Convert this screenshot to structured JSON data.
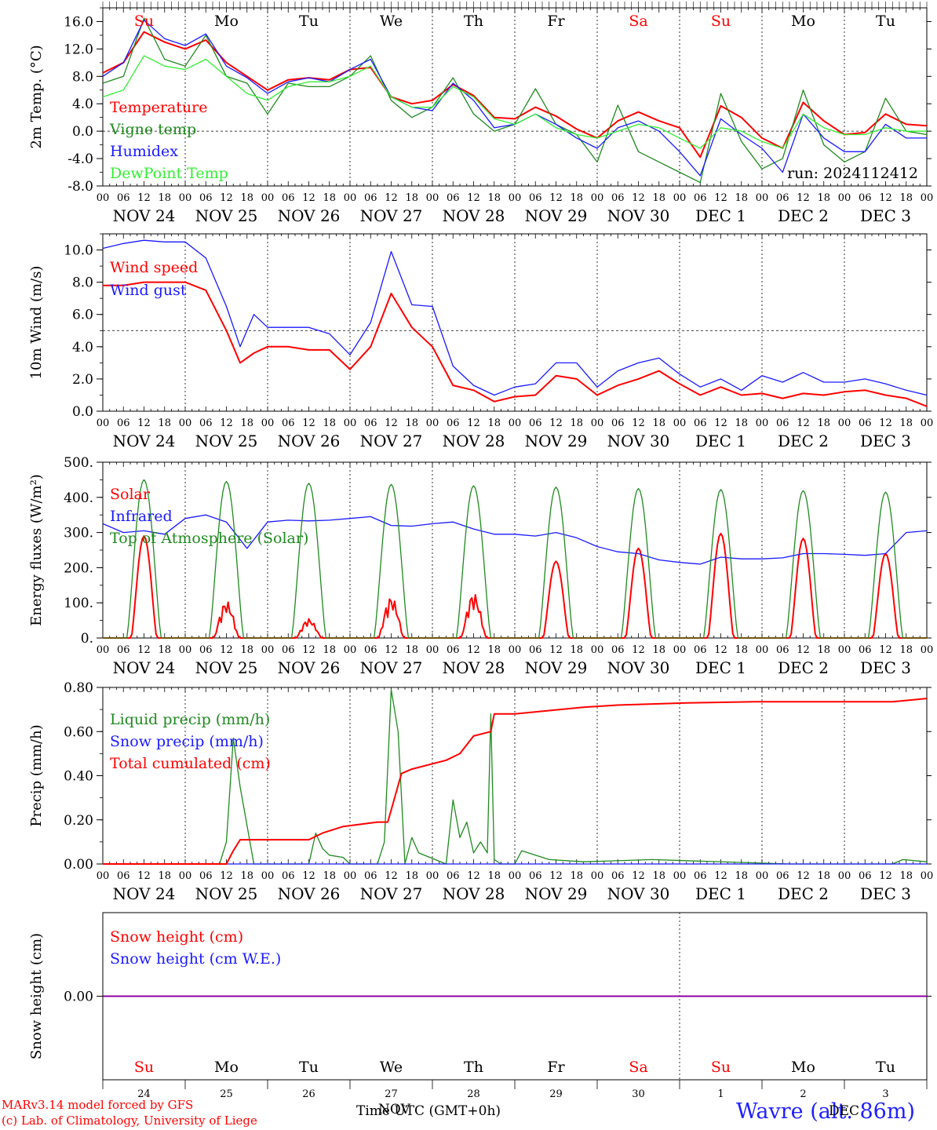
{
  "colors": {
    "red": "#ff0000",
    "darkgreen": "#1f8a1f",
    "blue": "#1a1aff",
    "lightgreen": "#33ee33",
    "purple": "#8000c0",
    "weekend": "#ff0000",
    "weekday": "#000000"
  },
  "day_labels": [
    {
      "label": "Su",
      "weekend": true
    },
    {
      "label": "Mo",
      "weekend": false
    },
    {
      "label": "Tu",
      "weekend": false
    },
    {
      "label": "We",
      "weekend": false
    },
    {
      "label": "Th",
      "weekend": false
    },
    {
      "label": "Fr",
      "weekend": false
    },
    {
      "label": "Sa",
      "weekend": true
    },
    {
      "label": "Su",
      "weekend": true
    },
    {
      "label": "Mo",
      "weekend": false
    },
    {
      "label": "Tu",
      "weekend": false
    }
  ],
  "date_labels": [
    "NOV 24",
    "NOV 25",
    "NOV 26",
    "NOV 27",
    "NOV 28",
    "NOV 29",
    "NOV 30",
    "DEC  1",
    "DEC  2",
    "DEC  3"
  ],
  "day_numbers": [
    "24",
    "25",
    "26",
    "27",
    "28",
    "29",
    "30",
    "1",
    "2",
    "3"
  ],
  "hour_ticks": [
    "00",
    "06",
    "12",
    "18"
  ],
  "final_hour_tick": "00",
  "footer": {
    "credit_line1": "MARv3.14 model forced by GFS",
    "credit_line2": "(c) Lab. of Climatology, University of Liege",
    "time_title": "Time UTC (GMT+0h)",
    "overlap_text": "NOV",
    "station": "Wavre (alt. 86m)",
    "station_overlap": "DEC"
  },
  "chart_data": [
    {
      "id": "temperature",
      "type": "line",
      "ylabel": "2m Temp. (°C)",
      "ylim": [
        -8,
        18
      ],
      "yticks": [
        "16.0",
        "12.0",
        "8.0",
        "4.0",
        "0.0",
        "-4.0",
        "-8.0"
      ],
      "ytick_values": [
        16,
        12,
        8,
        4,
        0,
        -4,
        -8
      ],
      "reference_line": 0,
      "annotation": "run: 2024112412",
      "x_unit": "hours since NOV 24 00 UTC",
      "series": [
        {
          "name": "Temperature",
          "color": "red",
          "x": [
            0,
            6,
            12,
            18,
            24,
            30,
            36,
            42,
            48,
            54,
            60,
            66,
            72,
            78,
            84,
            90,
            96,
            102,
            108,
            114,
            120,
            126,
            132,
            138,
            144,
            150,
            156,
            162,
            168,
            174,
            180,
            186,
            192,
            198,
            204,
            210,
            216,
            222,
            228,
            234,
            240
          ],
          "values": [
            8.5,
            10,
            14.5,
            13,
            12,
            13.3,
            10,
            8,
            6,
            7.5,
            7.8,
            7.5,
            9,
            9.3,
            5,
            4,
            4.5,
            6.8,
            5.2,
            2,
            1.8,
            3.5,
            2.2,
            0.3,
            -1,
            1.5,
            2.8,
            1.5,
            0.5,
            -3.8,
            3.7,
            2,
            -1,
            -2.5,
            4.2,
            1.5,
            -0.5,
            -0.2,
            2.5,
            1,
            0.8
          ]
        },
        {
          "name": "Vigne temp",
          "color": "darkgreen",
          "x": [
            0,
            6,
            12,
            18,
            24,
            30,
            36,
            42,
            48,
            54,
            60,
            66,
            72,
            78,
            84,
            90,
            96,
            102,
            108,
            114,
            120,
            126,
            132,
            138,
            144,
            150,
            156,
            162,
            168,
            174,
            180,
            186,
            192,
            198,
            204,
            210,
            216,
            222,
            228,
            234,
            240
          ],
          "values": [
            7,
            8,
            16.5,
            10.5,
            9.5,
            14,
            8,
            7,
            2.5,
            7,
            6.5,
            6.5,
            8,
            11,
            4.5,
            2,
            3.5,
            7.8,
            2.5,
            0,
            1,
            6.2,
            1,
            -0.5,
            -4.5,
            3.8,
            -3,
            -4.5,
            -6,
            -7.5,
            5.5,
            -1.5,
            -5.5,
            -4,
            6,
            -2,
            -4.5,
            -3,
            4.8,
            0,
            -0.5
          ]
        },
        {
          "name": "Humidex",
          "color": "blue",
          "x": [
            0,
            6,
            12,
            18,
            24,
            30,
            36,
            42,
            48,
            54,
            60,
            66,
            72,
            78,
            84,
            90,
            96,
            102,
            108,
            114,
            120,
            126,
            132,
            138,
            144,
            150,
            156,
            162,
            168,
            174,
            180,
            186,
            192,
            198,
            204,
            210,
            216,
            222,
            228,
            234,
            240
          ],
          "values": [
            8,
            10,
            16.2,
            13.5,
            12.5,
            14.2,
            9.5,
            7.8,
            5.5,
            7.2,
            7.8,
            7.2,
            9,
            10.5,
            5,
            3.5,
            3,
            7,
            4.5,
            0.5,
            1,
            2.5,
            1,
            -1,
            -2.5,
            0.5,
            1.5,
            0,
            -3,
            -6.5,
            1.8,
            -0.5,
            -2.5,
            -6,
            2.5,
            -1,
            -3,
            -3,
            1,
            -1,
            -1
          ]
        },
        {
          "name": "DewPoint Temp",
          "color": "lightgreen",
          "x": [
            0,
            6,
            12,
            18,
            24,
            30,
            36,
            42,
            48,
            54,
            60,
            66,
            72,
            78,
            84,
            90,
            96,
            102,
            108,
            114,
            120,
            126,
            132,
            138,
            144,
            150,
            156,
            162,
            168,
            174,
            180,
            186,
            192,
            198,
            204,
            210,
            216,
            222,
            228,
            234,
            240
          ],
          "values": [
            5,
            6,
            11,
            9.5,
            9,
            10.5,
            8,
            5.5,
            4.5,
            6.5,
            7.2,
            7.2,
            8,
            9.5,
            5,
            3.5,
            3.5,
            6.5,
            5,
            1.8,
            1,
            2.5,
            0.5,
            -0.5,
            -1,
            0,
            1,
            0.5,
            -1,
            -2.5,
            0.5,
            0,
            -1.5,
            -2.5,
            2.5,
            0.5,
            -0.5,
            -0.5,
            0.5,
            0,
            0
          ]
        }
      ]
    },
    {
      "id": "wind",
      "type": "line",
      "ylabel": "10m Wind (m/s)",
      "ylim": [
        0,
        11
      ],
      "yticks": [
        "10.0",
        "8.0",
        "6.0",
        "4.0",
        "2.0",
        "0.0"
      ],
      "ytick_values": [
        10,
        8,
        6,
        4,
        2,
        0
      ],
      "reference_line": 5,
      "x_unit": "hours since NOV 24 00 UTC",
      "series": [
        {
          "name": "Wind speed",
          "color": "red",
          "x": [
            0,
            6,
            12,
            18,
            24,
            30,
            36,
            40,
            44,
            48,
            54,
            60,
            66,
            72,
            78,
            84,
            90,
            96,
            102,
            108,
            114,
            120,
            126,
            132,
            138,
            144,
            150,
            156,
            162,
            168,
            174,
            180,
            186,
            192,
            198,
            204,
            210,
            216,
            222,
            228,
            234,
            240
          ],
          "values": [
            7.8,
            7.8,
            8,
            8,
            8,
            7.5,
            5,
            3,
            3.6,
            4,
            4,
            3.8,
            3.8,
            2.6,
            4,
            7.3,
            5.2,
            4,
            1.6,
            1.3,
            0.6,
            0.9,
            1,
            2.2,
            2,
            1,
            1.6,
            2,
            2.5,
            1.7,
            1,
            1.5,
            1,
            1.1,
            0.8,
            1.1,
            1,
            1.2,
            1.3,
            1,
            0.8,
            0.3
          ]
        },
        {
          "name": "Wind gust",
          "color": "blue",
          "x": [
            0,
            6,
            12,
            18,
            24,
            30,
            36,
            40,
            44,
            48,
            54,
            60,
            66,
            72,
            78,
            84,
            90,
            96,
            102,
            108,
            114,
            120,
            126,
            132,
            138,
            144,
            150,
            156,
            162,
            168,
            174,
            180,
            186,
            192,
            198,
            204,
            210,
            216,
            222,
            228,
            234,
            240
          ],
          "values": [
            10.1,
            10.4,
            10.6,
            10.5,
            10.5,
            9.5,
            6.5,
            4,
            6,
            5.2,
            5.2,
            5.2,
            4.8,
            3.5,
            5.5,
            9.9,
            6.6,
            6.5,
            2.8,
            1.6,
            1,
            1.5,
            1.7,
            3,
            3,
            1.5,
            2.5,
            3,
            3.3,
            2.3,
            1.5,
            2,
            1.3,
            2.2,
            1.8,
            2.4,
            1.8,
            1.8,
            2,
            1.7,
            1.3,
            1
          ]
        }
      ]
    },
    {
      "id": "energy",
      "type": "line",
      "ylabel": "Energy fluxes (W/m²)",
      "ylim": [
        0,
        500
      ],
      "yticks": [
        "500.",
        "400.",
        "300.",
        "200.",
        "100.",
        "0."
      ],
      "ytick_values": [
        500,
        400,
        300,
        200,
        100,
        0
      ],
      "x_unit": "hours since NOV 24 00 UTC",
      "series": [
        {
          "name": "Solar",
          "color": "red",
          "daily_peaks": [
            290,
            105,
            55,
            118,
            128,
            218,
            255,
            297,
            283,
            240
          ]
        },
        {
          "name": "Infrared",
          "color": "blue",
          "x": [
            0,
            6,
            12,
            18,
            24,
            30,
            36,
            42,
            48,
            54,
            60,
            66,
            72,
            78,
            84,
            90,
            96,
            102,
            108,
            114,
            120,
            126,
            132,
            138,
            144,
            150,
            156,
            162,
            168,
            174,
            180,
            186,
            192,
            198,
            204,
            210,
            216,
            222,
            228,
            234,
            240
          ],
          "values": [
            325,
            300,
            305,
            295,
            340,
            350,
            330,
            255,
            330,
            335,
            333,
            335,
            340,
            345,
            320,
            318,
            325,
            330,
            310,
            295,
            295,
            290,
            300,
            285,
            260,
            245,
            240,
            222,
            215,
            210,
            230,
            225,
            225,
            228,
            240,
            240,
            238,
            235,
            240,
            300,
            305
          ]
        },
        {
          "name": "Top of Atmosphere (Solar)",
          "color": "darkgreen",
          "daily_peaks": [
            450,
            445,
            440,
            437,
            433,
            429,
            425,
            422,
            419,
            415
          ]
        }
      ]
    },
    {
      "id": "precip",
      "type": "line",
      "ylabel": "Precip (mm/h)",
      "ylim": [
        0,
        0.8
      ],
      "yticks": [
        "0.80",
        "0.60",
        "0.40",
        "0.20",
        "0.00"
      ],
      "ytick_values": [
        0.8,
        0.6,
        0.4,
        0.2,
        0.0
      ],
      "x_unit": "hours since NOV 24 00 UTC",
      "series": [
        {
          "name": "Liquid precip (mm/h)",
          "color": "darkgreen",
          "x": [
            0,
            34,
            36,
            38,
            40,
            44,
            60,
            62,
            64,
            66,
            70,
            72,
            74,
            80,
            82,
            84,
            86,
            88,
            90,
            92,
            100,
            102,
            104,
            106,
            108,
            110,
            112,
            113,
            114,
            116,
            120,
            122,
            130,
            140,
            160,
            200,
            230,
            233,
            240
          ],
          "values": [
            0,
            0,
            0.1,
            0.57,
            0.35,
            0,
            0,
            0.14,
            0.07,
            0.04,
            0.03,
            0,
            0,
            0,
            0.1,
            0.79,
            0.6,
            0,
            0.12,
            0.05,
            0,
            0.29,
            0.12,
            0.19,
            0.05,
            0.1,
            0.05,
            0.68,
            0.02,
            0,
            0,
            0.06,
            0.02,
            0.01,
            0.02,
            0,
            0,
            0.02,
            0.01
          ]
        },
        {
          "name": "Snow precip (mm/h)",
          "color": "blue",
          "x": [
            0,
            240
          ],
          "values": [
            0,
            0
          ]
        },
        {
          "name": "Total cumulated (cm)",
          "color": "red",
          "x": [
            0,
            36,
            38,
            40,
            60,
            64,
            70,
            80,
            83,
            85,
            87,
            90,
            100,
            104,
            108,
            113,
            114,
            120,
            140,
            150,
            170,
            190,
            230,
            240
          ],
          "values": [
            0,
            0,
            0.06,
            0.11,
            0.11,
            0.14,
            0.17,
            0.19,
            0.19,
            0.3,
            0.41,
            0.43,
            0.47,
            0.5,
            0.58,
            0.6,
            0.68,
            0.68,
            0.71,
            0.72,
            0.73,
            0.735,
            0.735,
            0.75
          ]
        }
      ]
    },
    {
      "id": "snow",
      "type": "line",
      "ylabel": "Snow height (cm)",
      "ylim": [
        -1,
        1
      ],
      "yticks": [
        "0.00"
      ],
      "ytick_values": [
        0
      ],
      "x_unit": "hours since NOV 24 00 UTC",
      "series": [
        {
          "name": "Snow height (cm)",
          "color": "red",
          "x": [
            0,
            240
          ],
          "values": [
            0,
            0
          ]
        },
        {
          "name": "Snow height (cm W.E.)",
          "color": "blue",
          "x": [
            0,
            240
          ],
          "values": [
            0,
            0
          ]
        }
      ]
    }
  ]
}
